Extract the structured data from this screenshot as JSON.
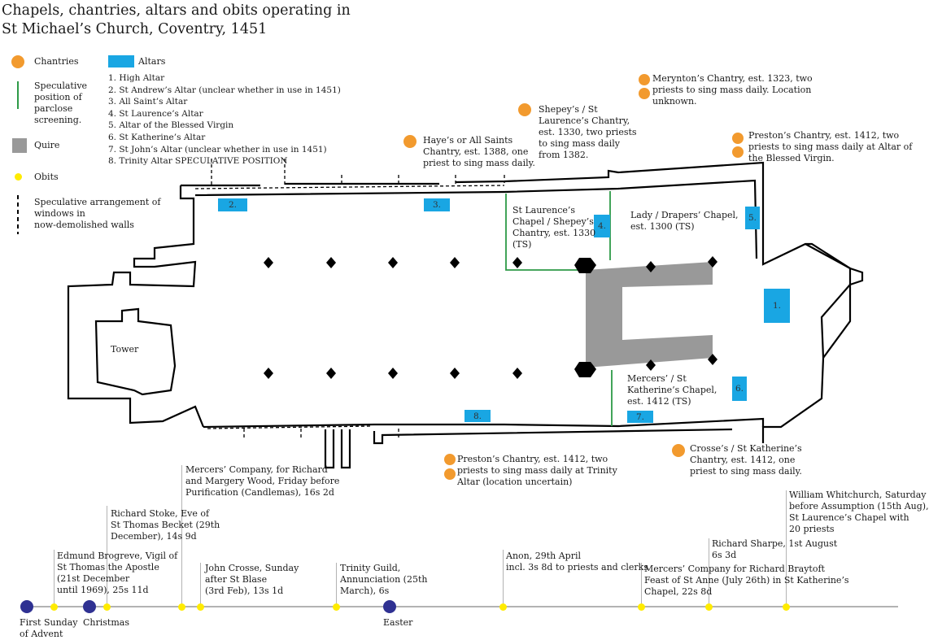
{
  "title": [
    "Chapels, chantries, altars and obits operating in",
    "St Michael’s Church, Coventry, 1451"
  ],
  "legend": {
    "chantries": "Chantries",
    "altars": "Altars",
    "parclose": [
      "Speculative",
      "position of",
      "parclose",
      "screening."
    ],
    "quire": "Quire",
    "obits": "Obits",
    "windows": [
      "Speculative arrangement of",
      "windows in",
      "now-demolished walls"
    ],
    "altar_list": [
      "1.   High Altar",
      "2.   St Andrew’s Altar (unclear whether in use in 1451)",
      "3.   All Saint’s Altar",
      "4.   St Laurence’s Altar",
      "5.   Altar of the Blessed Virgin",
      "6.   St Katherine’s Altar",
      "7.   St John’s Altar (unclear whether in use in 1451)",
      "8.   Trinity Altar SPECULATIVE POSITION"
    ]
  },
  "colors": {
    "chantry": "#f29a2e",
    "altar": "#19a6e3",
    "quire": "#999999",
    "obit": "#ffeb00",
    "parclose": "#2e9a47",
    "season": "#2f3192"
  },
  "altars": [
    "1.",
    "2.",
    "3.",
    "4.",
    "5.",
    "6.",
    "7.",
    "8."
  ],
  "plan_labels": {
    "tower": "Tower",
    "laurence_chapel": [
      "St Laurence’s",
      "Chapel / Shepey’s",
      "Chantry, est. 1330",
      "(TS)"
    ],
    "lady_chapel": [
      "Lady / Drapers’ Chapel,",
      "est. 1300 (TS)"
    ],
    "mercers_chapel": [
      "Mercers’ / St",
      "Katherine’s Chapel,",
      "est. 1412 (TS)"
    ]
  },
  "chantries": {
    "haye": [
      "Haye’s or All Saints",
      "Chantry, est. 1388, one",
      "priest to sing mass daily."
    ],
    "shepey": [
      "Shepey’s / St",
      "Laurence’s Chantry,",
      "est. 1330, two priests",
      "to sing mass daily",
      "from 1382."
    ],
    "merynton": [
      "Merynton’s Chantry, est. 1323, two",
      "priests to sing mass daily. Location",
      "unknown."
    ],
    "preston_north": [
      "Preston’s Chantry, est. 1412, two",
      "priests to sing mass daily at Altar of",
      "the Blessed Virgin."
    ],
    "preston_south": [
      "Preston’s Chantry, est. 1412, two",
      "priests to sing mass daily at Trinity",
      "Altar (location uncertain)"
    ],
    "crosse": [
      "Crosse’s / St Katherine’s",
      "Chantry, est. 1412, one",
      "priest to sing mass daily."
    ]
  },
  "timeline": {
    "seasons": [
      "First Sunday of Advent",
      "Christmas",
      "Easter"
    ],
    "first_sunday": [
      "First Sunday",
      "of Advent"
    ],
    "obits": {
      "brogreve": [
        "Edmund Brogreve, Vigil of",
        "St Thomas the Apostle",
        "(21st December",
        "until 1969), 25s 11d"
      ],
      "stoke": [
        "Richard Stoke, Eve of",
        "St Thomas Becket (29th",
        "December), 14s 9d"
      ],
      "mercers_wood": [
        "Mercers’ Company, for Richard",
        "and Margery Wood, Friday before",
        "Purification (Candlemas), 16s 2d"
      ],
      "crosse": [
        "John Crosse, Sunday",
        "after St Blase",
        "(3rd Feb), 13s 1d"
      ],
      "trinity": [
        "Trinity Guild,",
        "Annunciation (25th",
        "March), 6s"
      ],
      "anon": [
        "Anon, 29th April",
        "incl. 3s 8d to priests and clerks"
      ],
      "braytoft": [
        "Mercers’ Company for Richard Braytoft",
        "Feast of St Anne (July 26th) in St Katherine’s",
        "Chapel, 22s 8d"
      ],
      "sharpe": [
        "Richard Sharpe, 1st August",
        "6s 3d"
      ],
      "whitchurch": [
        "William Whitchurch, Saturday",
        "before Assumption (15th Aug),",
        "St Laurence’s Chapel with",
        "20 priests"
      ]
    }
  }
}
